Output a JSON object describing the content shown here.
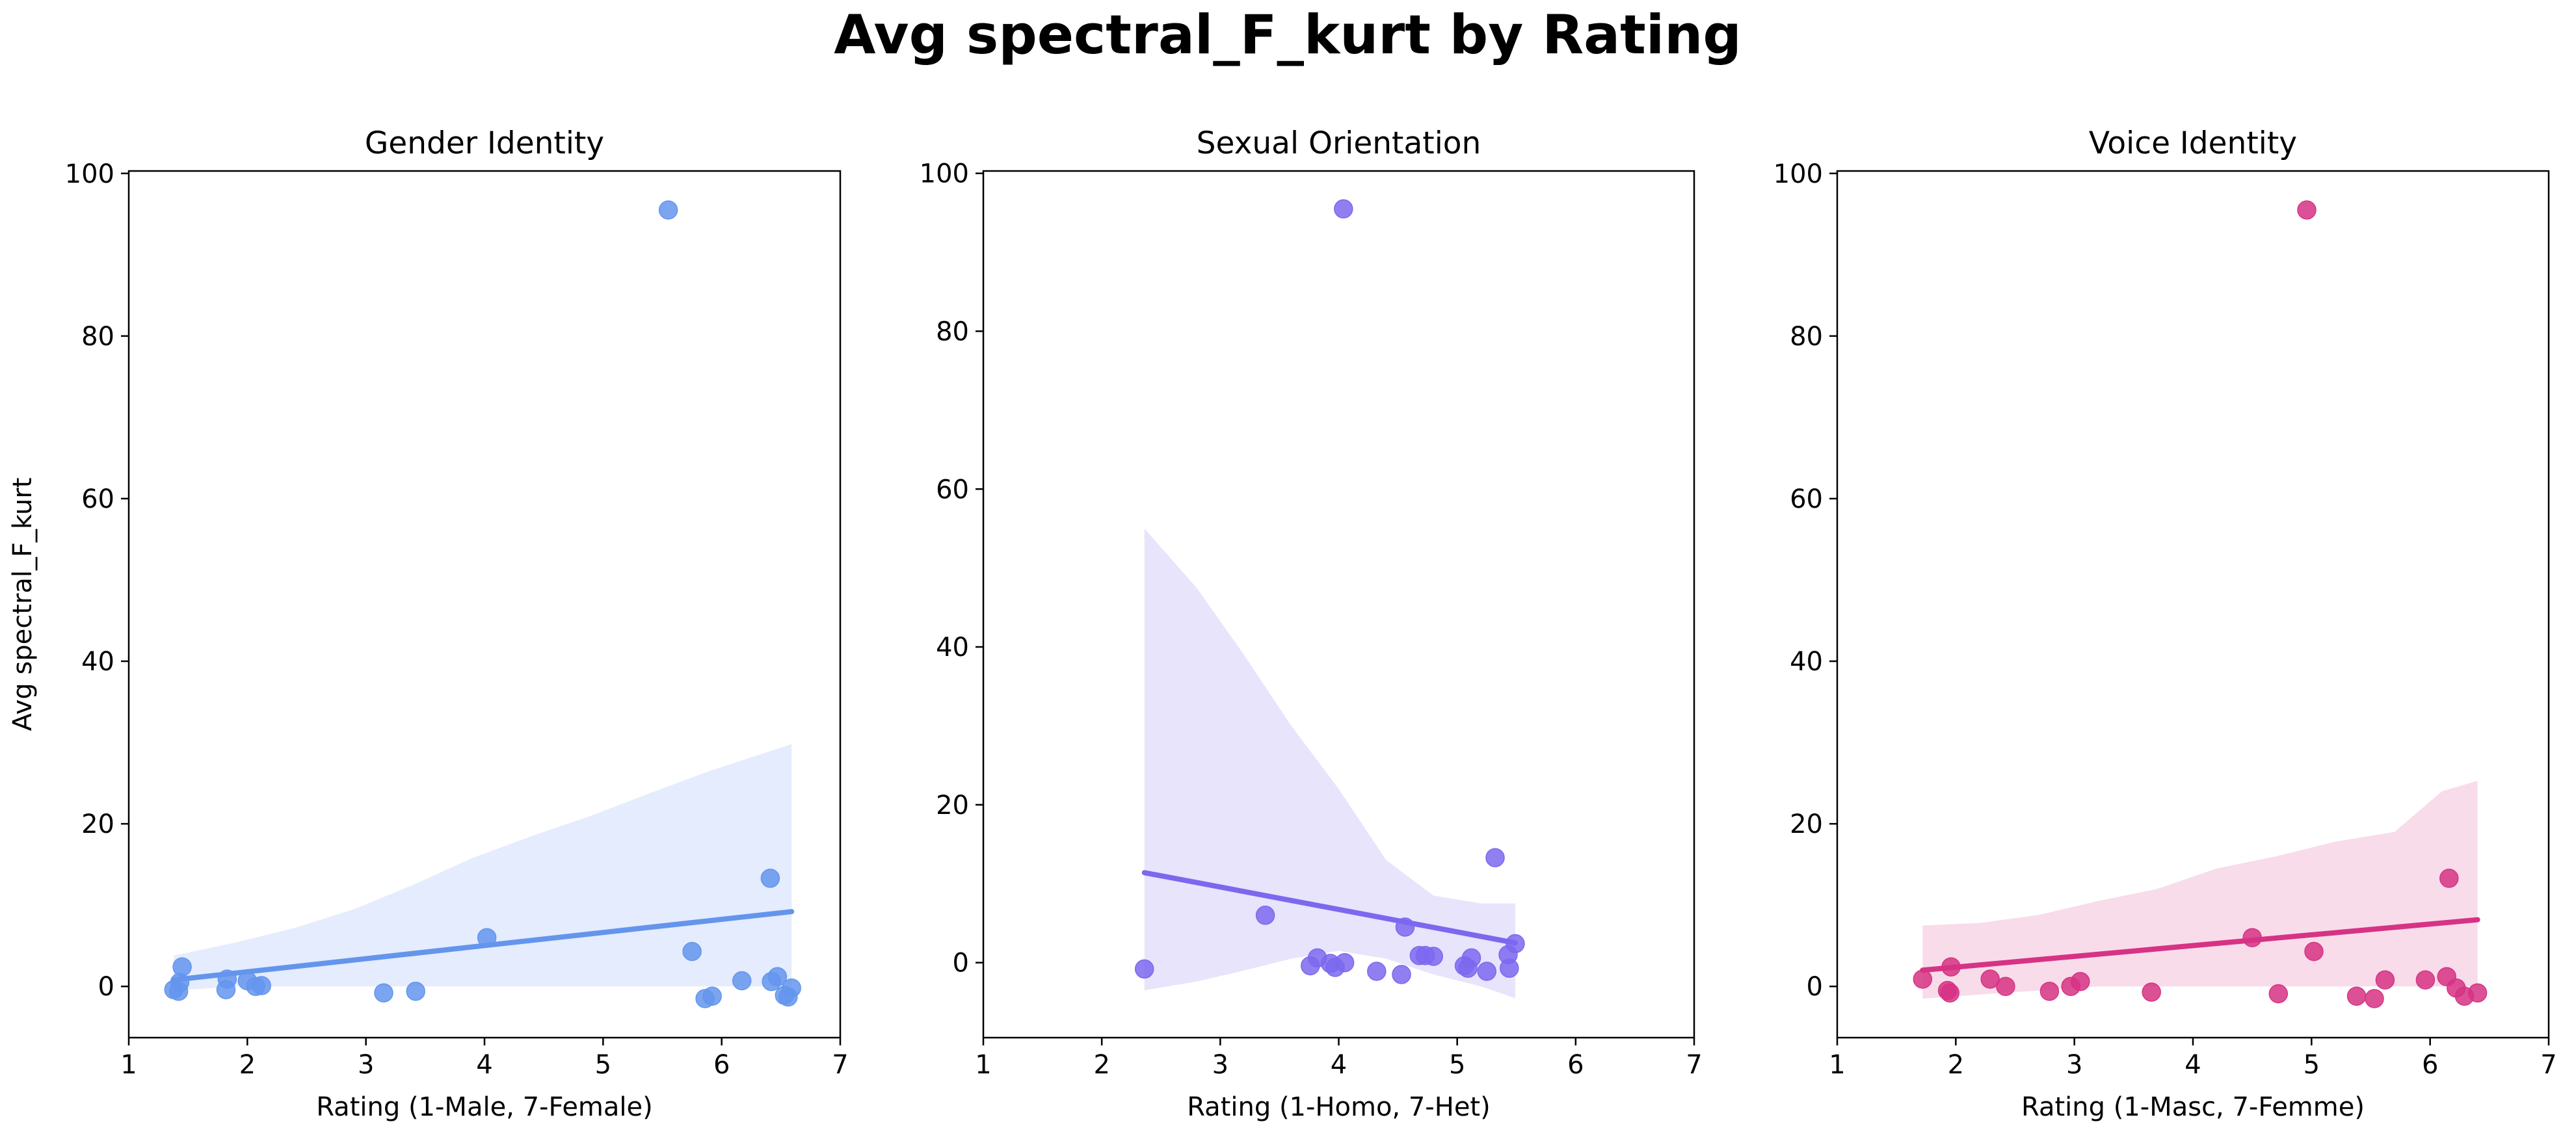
{
  "figure": {
    "title": "Avg spectral_F_kurt by Rating"
  },
  "chart_data": [
    {
      "type": "scatter",
      "title": "Gender Identity",
      "xlabel": "Rating (1-Male, 7-Female)",
      "ylabel": "Avg spectral_F_kurt",
      "xlim": [
        1,
        7
      ],
      "ylim": [
        -6.3,
        100.3
      ],
      "xticks": [
        1,
        2,
        3,
        4,
        5,
        6,
        7
      ],
      "yticks": [
        0,
        20,
        40,
        60,
        80,
        100
      ],
      "grid": false,
      "color": "#6495ED",
      "band_color": "#E5ECFD",
      "points": [
        [
          1.38,
          -0.4
        ],
        [
          1.42,
          -0.6
        ],
        [
          1.43,
          0.5
        ],
        [
          1.45,
          2.4
        ],
        [
          1.82,
          -0.4
        ],
        [
          1.83,
          0.9
        ],
        [
          2.0,
          0.7
        ],
        [
          2.07,
          0.0
        ],
        [
          2.12,
          0.1
        ],
        [
          3.15,
          -0.8
        ],
        [
          3.42,
          -0.6
        ],
        [
          4.02,
          6.0
        ],
        [
          5.55,
          95.5
        ],
        [
          5.75,
          4.3
        ],
        [
          5.86,
          -1.5
        ],
        [
          5.92,
          -1.2
        ],
        [
          6.17,
          0.7
        ],
        [
          6.41,
          13.3
        ],
        [
          6.42,
          0.6
        ],
        [
          6.47,
          1.2
        ],
        [
          6.53,
          -1.1
        ],
        [
          6.56,
          -1.3
        ],
        [
          6.59,
          -0.2
        ]
      ],
      "fit_line": [
        [
          1.38,
          0.8
        ],
        [
          6.59,
          9.2
        ]
      ],
      "ci_band": {
        "x": [
          1.38,
          1.9,
          2.4,
          2.9,
          3.4,
          3.9,
          4.4,
          4.9,
          5.4,
          5.9,
          6.59
        ],
        "upper": [
          3.8,
          5.4,
          7.2,
          9.5,
          12.5,
          15.8,
          18.5,
          21.0,
          23.8,
          26.5,
          29.8
        ],
        "lower": [
          -0.5,
          0.0,
          0.0,
          0.0,
          0.0,
          0.0,
          0.0,
          0.0,
          0.0,
          0.0,
          0.0
        ]
      }
    },
    {
      "type": "scatter",
      "title": "Sexual Orientation",
      "xlabel": "Rating (1-Homo, 7-Het)",
      "ylabel": "",
      "xlim": [
        1,
        7
      ],
      "ylim": [
        -9.5,
        100.3
      ],
      "xticks": [
        1,
        2,
        3,
        4,
        5,
        6,
        7
      ],
      "yticks": [
        0,
        20,
        40,
        60,
        80,
        100
      ],
      "grid": false,
      "color": "#7B68EE",
      "band_color": "#E7E4FC",
      "points": [
        [
          2.36,
          -0.8
        ],
        [
          3.38,
          6.0
        ],
        [
          3.76,
          -0.4
        ],
        [
          3.82,
          0.6
        ],
        [
          3.93,
          -0.1
        ],
        [
          3.97,
          -0.6
        ],
        [
          4.05,
          0.0
        ],
        [
          4.04,
          95.5
        ],
        [
          4.32,
          -1.1
        ],
        [
          4.53,
          -1.5
        ],
        [
          4.56,
          4.5
        ],
        [
          4.68,
          0.9
        ],
        [
          4.73,
          0.9
        ],
        [
          4.8,
          0.8
        ],
        [
          5.06,
          -0.4
        ],
        [
          5.09,
          -0.7
        ],
        [
          5.12,
          0.6
        ],
        [
          5.25,
          -1.1
        ],
        [
          5.32,
          13.3
        ],
        [
          5.43,
          1.0
        ],
        [
          5.44,
          -0.7
        ],
        [
          5.49,
          2.4
        ]
      ],
      "fit_line": [
        [
          2.36,
          11.4
        ],
        [
          5.49,
          2.5
        ]
      ],
      "ci_band": {
        "x": [
          2.36,
          2.8,
          3.2,
          3.6,
          4.0,
          4.4,
          4.8,
          5.2,
          5.49
        ],
        "upper": [
          55.0,
          47.5,
          39.0,
          30.0,
          22.0,
          13.0,
          8.5,
          7.5,
          7.5
        ],
        "lower": [
          -3.5,
          -2.4,
          -1.0,
          0.5,
          1.5,
          0.5,
          -1.5,
          -3.0,
          -4.5
        ]
      }
    },
    {
      "type": "scatter",
      "title": "Voice Identity",
      "xlabel": "Rating (1-Masc, 7-Femme)",
      "ylabel": "",
      "xlim": [
        1,
        7
      ],
      "ylim": [
        -6.3,
        100.3
      ],
      "xticks": [
        1,
        2,
        3,
        4,
        5,
        6,
        7
      ],
      "yticks": [
        0,
        20,
        40,
        60,
        80,
        100
      ],
      "grid": false,
      "color": "#D63384",
      "band_color": "#F8DCEA",
      "points": [
        [
          1.72,
          0.9
        ],
        [
          1.93,
          -0.5
        ],
        [
          1.95,
          -0.8
        ],
        [
          1.96,
          2.4
        ],
        [
          2.29,
          0.9
        ],
        [
          2.42,
          0.0
        ],
        [
          2.79,
          -0.6
        ],
        [
          2.97,
          0.0
        ],
        [
          3.05,
          0.6
        ],
        [
          3.65,
          -0.7
        ],
        [
          4.5,
          6.0
        ],
        [
          4.72,
          -0.9
        ],
        [
          4.96,
          95.5
        ],
        [
          5.02,
          4.3
        ],
        [
          5.38,
          -1.2
        ],
        [
          5.53,
          -1.5
        ],
        [
          5.62,
          0.8
        ],
        [
          5.96,
          0.8
        ],
        [
          6.14,
          1.2
        ],
        [
          6.16,
          13.3
        ],
        [
          6.22,
          -0.2
        ],
        [
          6.29,
          -1.2
        ],
        [
          6.4,
          -0.8
        ]
      ],
      "fit_line": [
        [
          1.72,
          2.0
        ],
        [
          6.4,
          8.2
        ]
      ],
      "ci_band": {
        "x": [
          1.72,
          2.2,
          2.7,
          3.2,
          3.7,
          4.2,
          4.7,
          5.2,
          5.7,
          6.1,
          6.4
        ],
        "upper": [
          7.5,
          7.8,
          8.8,
          10.5,
          12.0,
          14.5,
          16.0,
          17.8,
          19.0,
          24.0,
          25.3
        ],
        "lower": [
          -1.5,
          -1.0,
          -0.5,
          0.0,
          0.0,
          0.0,
          0.0,
          0.0,
          0.0,
          0.0,
          0.0
        ]
      }
    }
  ]
}
